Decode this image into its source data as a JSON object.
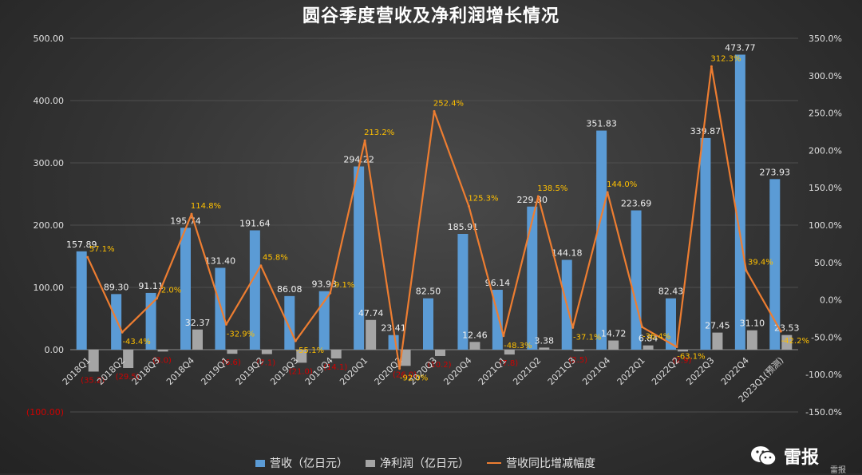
{
  "title": "圆谷季度营收及净利润增长情况",
  "legend": {
    "revenue": "营收（亿日元）",
    "profit": "净利润（亿日元）",
    "growth": "营收同比增减幅度"
  },
  "brand": {
    "name": "雷报",
    "sub": "雷报"
  },
  "colors": {
    "revenue": "#5b9bd5",
    "profit": "#a5a5a5",
    "growth": "#ed7d31",
    "growth_label": "#ffc000",
    "negative_label": "#d00000"
  },
  "chart_data": {
    "type": "bar",
    "categories": [
      "2018Q1",
      "2018Q2",
      "2018Q3",
      "2018Q4",
      "2019Q1",
      "2019Q2",
      "2019Q3",
      "2019Q4",
      "2020Q1",
      "2020Q2",
      "2020Q3",
      "2020Q4",
      "2021Q1",
      "2021Q2",
      "2021Q3",
      "2021Q4",
      "2022Q1",
      "2022Q2",
      "2022Q3",
      "2022Q4",
      "2023Q1(预测)"
    ],
    "series": [
      {
        "name": "营收（亿日元）",
        "axis": "left",
        "values": [
          157.89,
          89.3,
          91.11,
          195.74,
          131.4,
          191.64,
          86.08,
          93.93,
          294.22,
          23.41,
          82.5,
          185.91,
          96.14,
          229.8,
          144.18,
          351.83,
          223.69,
          82.43,
          339.87,
          473.77,
          273.93
        ],
        "labels": [
          "157.89",
          "89.30",
          "91.11",
          "195.74",
          "131.40",
          "191.64",
          "86.08",
          "93.93",
          "294.22",
          "23.41",
          "82.50",
          "185.91",
          "96.14",
          "229.80",
          "144.18",
          "351.83",
          "223.69",
          "82.43",
          "339.87",
          "473.77",
          "273.93"
        ]
      },
      {
        "name": "净利润（亿日元）",
        "axis": "left",
        "values": [
          -35.2,
          -29.5,
          -3.0,
          32.37,
          -6.6,
          -7.1,
          -21.0,
          -14.1,
          47.74,
          -26.0,
          -10.2,
          12.46,
          -7.8,
          3.38,
          -2.5,
          14.72,
          6.84,
          -2.9,
          27.45,
          31.1,
          23.53
        ],
        "labels": [
          "(35.2)",
          "(29.5)",
          "(3.0)",
          "32.37",
          "(6.6)",
          "(7.1)",
          "(21.0)",
          "(14.1)",
          "47.74",
          "(26.0)",
          "(10.2)",
          "12.46",
          "(7.8)",
          "3.38",
          "(2.5)",
          "14.72",
          "6.84",
          "(2.9)",
          "27.45",
          "31.10",
          "23.53"
        ]
      },
      {
        "name": "营收同比增减幅度",
        "axis": "right",
        "type": "line",
        "values": [
          57.1,
          -43.4,
          2.0,
          114.8,
          -32.9,
          45.8,
          -55.1,
          9.1,
          213.2,
          -92.0,
          252.4,
          125.3,
          -48.3,
          138.5,
          -37.1,
          144.0,
          -36.4,
          -63.1,
          312.3,
          39.4,
          -42.2
        ],
        "labels": [
          "57.1%",
          "-43.4%",
          "2.0%",
          "114.8%",
          "-32.9%",
          "45.8%",
          "-55.1%",
          "9.1%",
          "213.2%",
          "-92.0%",
          "252.4%",
          "125.3%",
          "-48.3%",
          "138.5%",
          "-37.1%",
          "144.0%",
          "-36.4%",
          "-63.1%",
          "312.3%",
          "39.4%",
          "-42.2%"
        ]
      }
    ],
    "y_left": {
      "min": -100,
      "max": 500,
      "step": 100,
      "ticks": [
        "(100.00)",
        "0.00",
        "100.00",
        "200.00",
        "300.00",
        "400.00",
        "500.00"
      ]
    },
    "y_right": {
      "min": -150,
      "max": 350,
      "step": 50,
      "ticks": [
        "-150.0%",
        "-100.0%",
        "-50.0%",
        "0.0%",
        "50.0%",
        "100.0%",
        "150.0%",
        "200.0%",
        "250.0%",
        "300.0%",
        "350.0%"
      ]
    },
    "legend_position": "bottom",
    "grid": true
  }
}
